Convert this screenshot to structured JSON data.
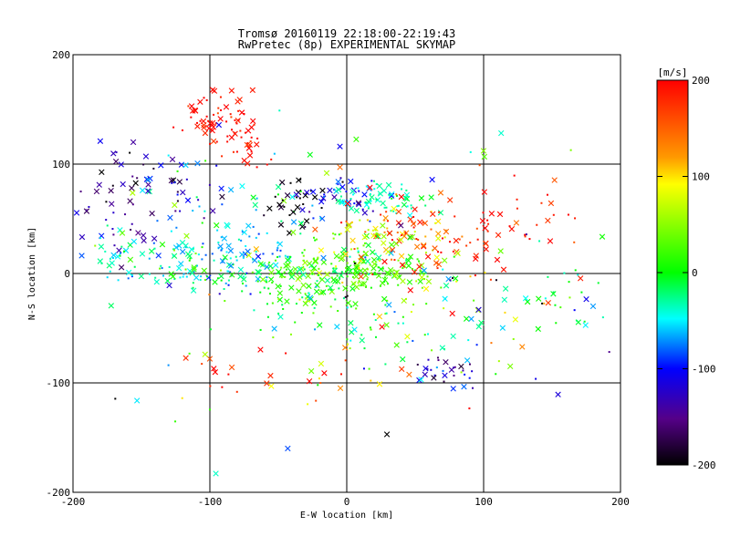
{
  "chart_data": {
    "type": "scatter",
    "title": "Tromsø 20160119 22:18:00-22:19:43",
    "subtitle": "RwPretec (8p) EXPERIMENTAL SKYMAP",
    "xlabel": "E-W location [km]",
    "ylabel": "N-S location [km]",
    "xlim": [
      -200,
      200
    ],
    "ylim": [
      -200,
      200
    ],
    "x_ticks": [
      "-200",
      "-100",
      "0",
      "100",
      "200"
    ],
    "y_ticks": [
      "-200",
      "-100",
      "0",
      "100",
      "200"
    ],
    "grid": true,
    "colorbar": {
      "label": "[m/s]",
      "range": [
        -200,
        200
      ],
      "ticks": [
        "200",
        "100",
        "0",
        "-100",
        "-200"
      ],
      "colormap": "black-purple-blue-cyan-green-yellow-red"
    },
    "markers": [
      "x",
      "dot"
    ],
    "clusters": [
      {
        "x": -95,
        "y": 140,
        "sx": 18,
        "sy": 12,
        "v": 195,
        "sv": 15,
        "n": 60
      },
      {
        "x": -75,
        "y": 115,
        "sx": 10,
        "sy": 10,
        "v": 190,
        "sv": 15,
        "n": 25
      },
      {
        "x": -170,
        "y": 70,
        "sx": 20,
        "sy": 25,
        "v": -155,
        "sv": 30,
        "n": 45
      },
      {
        "x": -125,
        "y": 85,
        "sx": 30,
        "sy": 20,
        "v": -130,
        "sv": 40,
        "n": 35
      },
      {
        "x": -85,
        "y": 15,
        "sx": 25,
        "sy": 12,
        "v": -65,
        "sv": 20,
        "n": 60
      },
      {
        "x": -150,
        "y": 10,
        "sx": 30,
        "sy": 15,
        "v": -40,
        "sv": 25,
        "n": 55
      },
      {
        "x": -105,
        "y": 5,
        "sx": 25,
        "sy": 12,
        "v": -15,
        "sv": 25,
        "n": 40
      },
      {
        "x": -70,
        "y": 45,
        "sx": 30,
        "sy": 25,
        "v": -40,
        "sv": 35,
        "n": 50
      },
      {
        "x": 0,
        "y": 0,
        "sx": 30,
        "sy": 12,
        "v": 20,
        "sv": 20,
        "n": 170
      },
      {
        "x": -40,
        "y": -5,
        "sx": 20,
        "sy": 15,
        "v": 0,
        "sv": 25,
        "n": 60
      },
      {
        "x": -38,
        "y": 60,
        "sx": 12,
        "sy": 15,
        "v": -205,
        "sv": 15,
        "n": 30
      },
      {
        "x": -5,
        "y": 70,
        "sx": 15,
        "sy": 12,
        "v": -110,
        "sv": 25,
        "n": 40
      },
      {
        "x": 25,
        "y": 70,
        "sx": 20,
        "sy": 8,
        "v": -35,
        "sv": 15,
        "n": 60
      },
      {
        "x": 40,
        "y": 38,
        "sx": 22,
        "sy": 15,
        "v": 140,
        "sv": 40,
        "n": 55
      },
      {
        "x": 15,
        "y": 30,
        "sx": 18,
        "sy": 15,
        "v": 50,
        "sv": 40,
        "n": 60
      },
      {
        "x": 90,
        "y": 40,
        "sx": 45,
        "sy": 25,
        "v": 185,
        "sv": 20,
        "n": 60
      },
      {
        "x": 70,
        "y": 20,
        "sx": 25,
        "sy": 25,
        "v": 120,
        "sv": 60,
        "n": 30
      },
      {
        "x": 75,
        "y": -90,
        "sx": 12,
        "sy": 10,
        "v": -120,
        "sv": 30,
        "n": 30
      },
      {
        "x": 70,
        "y": -50,
        "sx": 25,
        "sy": 25,
        "v": -20,
        "sv": 50,
        "n": 30
      },
      {
        "x": 160,
        "y": -30,
        "sx": 25,
        "sy": 15,
        "v": -30,
        "sv": 30,
        "n": 30
      },
      {
        "x": 0,
        "y": -40,
        "sx": 40,
        "sy": 20,
        "v": -20,
        "sv": 50,
        "n": 50
      },
      {
        "x": -20,
        "y": -100,
        "sx": 30,
        "sy": 20,
        "v": 150,
        "sv": 50,
        "n": 15
      },
      {
        "x": -90,
        "y": -95,
        "sx": 10,
        "sy": 8,
        "v": 190,
        "sv": 20,
        "n": 8
      },
      {
        "x": 0,
        "y": 0,
        "sx": 110,
        "sy": 70,
        "v": 0,
        "sv": 120,
        "n": 120
      }
    ]
  }
}
